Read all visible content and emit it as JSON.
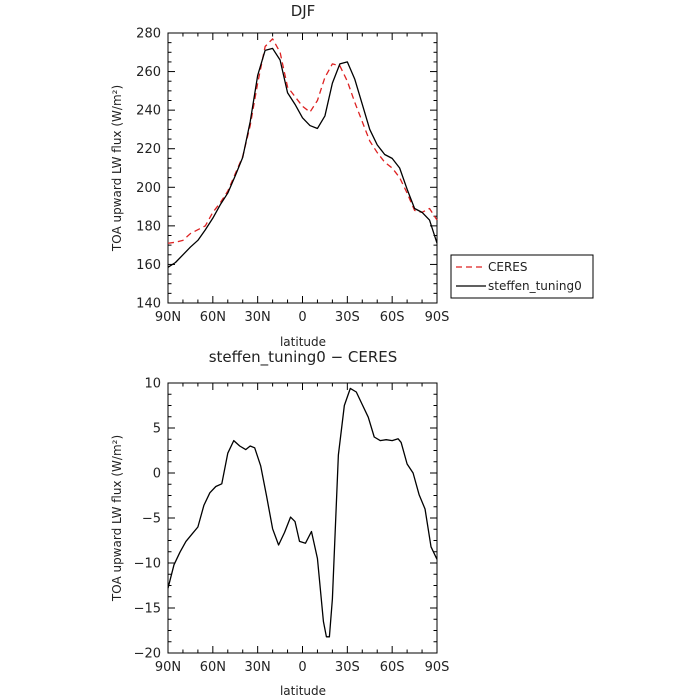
{
  "chart_data": [
    {
      "type": "line",
      "title": "DJF",
      "xlabel": "latitude",
      "ylabel": "TOA upward LW flux (W/m²)",
      "xlim": [
        90,
        -90
      ],
      "ylim": [
        140,
        280
      ],
      "x_ticks": [
        90,
        60,
        30,
        0,
        -30,
        -60,
        -90
      ],
      "x_tick_labels": [
        "90N",
        "60N",
        "30N",
        "0",
        "30S",
        "60S",
        "90S"
      ],
      "y_ticks": [
        140,
        160,
        180,
        200,
        220,
        240,
        260,
        280
      ],
      "y_tick_labels": [
        "140",
        "160",
        "180",
        "200",
        "220",
        "240",
        "260",
        "280"
      ],
      "grid": false,
      "legend_placement": "outside-right",
      "x": [
        90,
        85,
        80,
        75,
        70,
        65,
        60,
        55,
        50,
        45,
        40,
        35,
        30,
        25,
        20,
        15,
        10,
        5,
        0,
        -5,
        -10,
        -15,
        -20,
        -25,
        -30,
        -35,
        -40,
        -45,
        -50,
        -55,
        -60,
        -65,
        -70,
        -75,
        -80,
        -85,
        -90
      ],
      "series": [
        {
          "name": "CERES",
          "color": "#dd2222",
          "dash": "dashed",
          "values": [
            171,
            171.5,
            172.5,
            176,
            178,
            180,
            187,
            192,
            198,
            207,
            216,
            232,
            254,
            273,
            277,
            270,
            252,
            247,
            242,
            239,
            245,
            257,
            264,
            263,
            255,
            244,
            234,
            224,
            218,
            213,
            210,
            205,
            197,
            188,
            187,
            189,
            183
          ]
        },
        {
          "name": "steffen_tuning0",
          "color": "#000000",
          "dash": "solid",
          "values": [
            158.5,
            161,
            165,
            169,
            172.5,
            178,
            184,
            191,
            197,
            206,
            215.5,
            234,
            258,
            271,
            272,
            266,
            249,
            243,
            236,
            232,
            230.5,
            237,
            254,
            264,
            265,
            256,
            243,
            230,
            222,
            217,
            215,
            210,
            199,
            189,
            187,
            183,
            171
          ]
        }
      ]
    },
    {
      "type": "line",
      "title": "steffen_tuning0 − CERES",
      "xlabel": "latitude",
      "ylabel": "TOA upward LW flux (W/m²)",
      "xlim": [
        90,
        -90
      ],
      "ylim": [
        -20,
        10
      ],
      "x_ticks": [
        90,
        60,
        30,
        0,
        -30,
        -60,
        -90
      ],
      "x_tick_labels": [
        "90N",
        "60N",
        "30N",
        "0",
        "30S",
        "60S",
        "90S"
      ],
      "y_ticks": [
        -20,
        -15,
        -10,
        -5,
        0,
        5,
        10
      ],
      "y_tick_labels": [
        "−20",
        "−15",
        "−10",
        "−5",
        "0",
        "5",
        "10"
      ],
      "grid": false,
      "x": [
        90,
        86,
        82,
        78,
        74,
        70,
        66,
        62,
        58,
        54,
        50,
        46,
        42,
        38,
        35,
        32,
        28,
        24,
        20,
        16,
        12,
        8,
        5,
        2,
        -2,
        -6,
        -10,
        -14,
        -16,
        -18,
        -20,
        -24,
        -28,
        -32,
        -36,
        -40,
        -44,
        -48,
        -52,
        -56,
        -60,
        -64,
        -66,
        -70,
        -74,
        -78,
        -82,
        -86,
        -90
      ],
      "series": [
        {
          "color": "#000000",
          "dash": "solid",
          "values": [
            -12.8,
            -10.2,
            -8.8,
            -7.6,
            -6.8,
            -6,
            -3.6,
            -2.2,
            -1.5,
            -1.2,
            2.2,
            3.6,
            3,
            2.6,
            3,
            2.8,
            0.8,
            -2.6,
            -6.2,
            -8,
            -6.6,
            -4.9,
            -5.4,
            -7.6,
            -7.8,
            -6.5,
            -9.5,
            -16.5,
            -18.2,
            -18.2,
            -14,
            2,
            7.5,
            9.4,
            9,
            7.6,
            6.2,
            4,
            3.6,
            3.7,
            3.6,
            3.8,
            3.4,
            1,
            0,
            -2.4,
            -4,
            -8.2,
            -9.6
          ]
        }
      ]
    }
  ],
  "legend": {
    "ceres_label": "CERES",
    "model_label": "steffen_tuning0"
  },
  "top_panel": {
    "title": "DJF",
    "xlabel": "latitude",
    "ylabel": "TOA upward LW flux (W/m²)"
  },
  "bottom_panel": {
    "title": "steffen_tuning0 − CERES",
    "xlabel": "latitude",
    "ylabel": "TOA upward LW flux (W/m²)"
  }
}
